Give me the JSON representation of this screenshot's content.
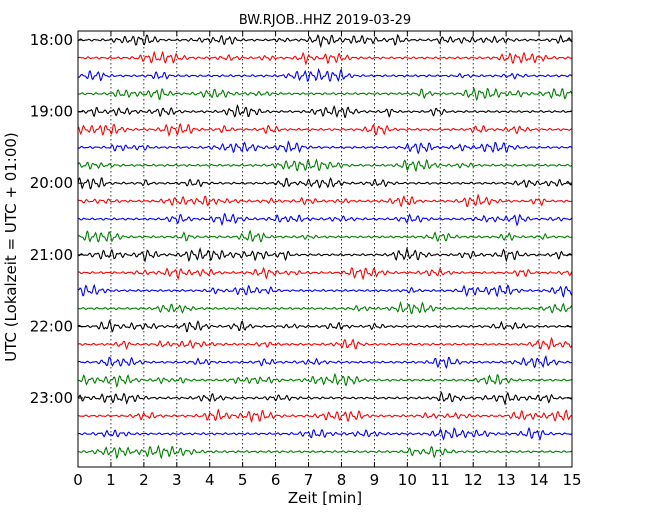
{
  "chart_data": {
    "type": "line",
    "title": "BW.RJOB..HHZ 2019-03-29",
    "xlabel": "Zeit  [min]",
    "ylabel": "UTC (Lokalzeit = UTC + 01:00)",
    "xlim": [
      0,
      15
    ],
    "x_ticks": [
      "0",
      "1",
      "2",
      "3",
      "4",
      "5",
      "6",
      "7",
      "8",
      "9",
      "10",
      "11",
      "12",
      "13",
      "14",
      "15"
    ],
    "y_tick_labels": [
      "18:00",
      "19:00",
      "20:00",
      "21:00",
      "22:00",
      "23:00"
    ],
    "trace_interval_minutes": 15,
    "trace_count": 24,
    "first_trace": "18:00",
    "last_trace": "23:45",
    "color_cycle": [
      "#000000",
      "#ff0000",
      "#0000ff",
      "#008000"
    ],
    "grid": "vertical dotted lines at each minute",
    "legend": "none"
  }
}
